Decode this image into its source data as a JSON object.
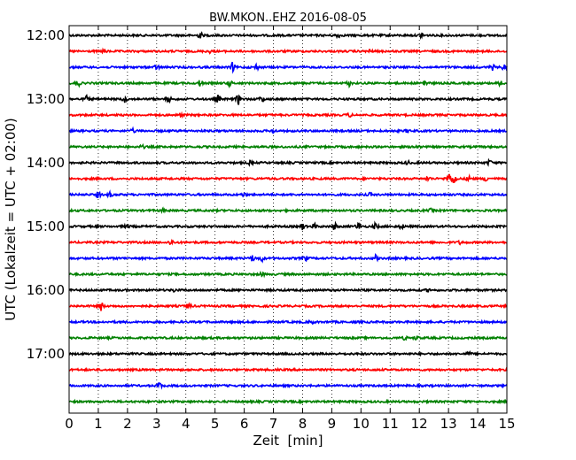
{
  "chart_data": {
    "type": "line",
    "title": "BW.MKON..EHZ 2016-08-05",
    "xlabel": "Zeit  [min]",
    "ylabel": "UTC (Lokalzeit = UTC + 02:00)",
    "xlim": [
      0,
      15
    ],
    "x_ticks": [
      0,
      1,
      2,
      3,
      4,
      5,
      6,
      7,
      8,
      9,
      10,
      11,
      12,
      13,
      14,
      15
    ],
    "x_tick_labels": [
      "0",
      "1",
      "2",
      "3",
      "4",
      "5",
      "6",
      "7",
      "8",
      "9",
      "10",
      "11",
      "12",
      "13",
      "14",
      "15"
    ],
    "y_ticks": [
      "12:00",
      "13:00",
      "14:00",
      "15:00",
      "16:00",
      "17:00"
    ],
    "vertical_grid": true,
    "trace_colors": [
      "#000000",
      "#ff0000",
      "#0000ff",
      "#008000"
    ],
    "traces": [
      {
        "start": "12:00",
        "color": "#000000",
        "events": [
          [
            4.5,
            1.0
          ],
          [
            9.2,
            0.8
          ],
          [
            12.1,
            0.8
          ]
        ]
      },
      {
        "start": "12:15",
        "color": "#ff0000",
        "events": [
          [
            1.2,
            0.6
          ],
          [
            4.8,
            0.5
          ],
          [
            10.3,
            0.5
          ]
        ]
      },
      {
        "start": "12:30",
        "color": "#0000ff",
        "events": [
          [
            3.0,
            0.8
          ],
          [
            5.6,
            1.6
          ],
          [
            6.4,
            1.0
          ],
          [
            14.5,
            0.9
          ],
          [
            14.9,
            0.9
          ]
        ]
      },
      {
        "start": "12:45",
        "color": "#008000",
        "events": [
          [
            0.3,
            1.2
          ],
          [
            4.5,
            1.2
          ],
          [
            5.5,
            1.0
          ],
          [
            9.6,
            0.9
          ],
          [
            12.2,
            1.4
          ],
          [
            14.8,
            1.0
          ]
        ]
      },
      {
        "start": "13:00",
        "color": "#000000",
        "events": [
          [
            0.6,
            1.0
          ],
          [
            1.9,
            1.0
          ],
          [
            3.4,
            1.0
          ],
          [
            5.1,
            1.2
          ],
          [
            5.8,
            1.8
          ],
          [
            6.6,
            1.0
          ]
        ]
      },
      {
        "start": "13:15",
        "color": "#ff0000",
        "events": [
          [
            3.8,
            0.6
          ],
          [
            9.6,
            0.6
          ]
        ]
      },
      {
        "start": "13:30",
        "color": "#0000ff",
        "events": [
          [
            2.2,
            0.6
          ],
          [
            7.0,
            0.5
          ],
          [
            11.6,
            0.5
          ]
        ]
      },
      {
        "start": "13:45",
        "color": "#008000",
        "events": [
          [
            2.5,
            0.5
          ],
          [
            11.9,
            0.8
          ]
        ]
      },
      {
        "start": "14:00",
        "color": "#000000",
        "events": [
          [
            6.2,
            0.6
          ],
          [
            11.6,
            0.6
          ],
          [
            14.4,
            0.9
          ]
        ]
      },
      {
        "start": "14:15",
        "color": "#ff0000",
        "events": [
          [
            12.3,
            0.8
          ],
          [
            13.0,
            2.4
          ],
          [
            13.2,
            2.0
          ],
          [
            13.7,
            1.0
          ],
          [
            14.3,
            1.0
          ]
        ]
      },
      {
        "start": "14:30",
        "color": "#0000ff",
        "events": [
          [
            1.0,
            1.0
          ],
          [
            1.4,
            0.7
          ],
          [
            6.0,
            0.6
          ],
          [
            10.3,
            0.5
          ]
        ]
      },
      {
        "start": "14:45",
        "color": "#008000",
        "events": [
          [
            3.2,
            0.5
          ],
          [
            12.4,
            0.5
          ]
        ]
      },
      {
        "start": "15:00",
        "color": "#000000",
        "events": [
          [
            2.0,
            0.6
          ],
          [
            8.0,
            1.2
          ],
          [
            8.4,
            0.9
          ],
          [
            9.1,
            1.2
          ],
          [
            9.9,
            1.4
          ],
          [
            10.5,
            1.0
          ],
          [
            11.4,
            0.8
          ]
        ]
      },
      {
        "start": "15:15",
        "color": "#ff0000",
        "events": [
          [
            3.5,
            0.9
          ],
          [
            13.4,
            0.5
          ]
        ]
      },
      {
        "start": "15:30",
        "color": "#0000ff",
        "events": [
          [
            6.3,
            1.2
          ],
          [
            6.6,
            1.0
          ],
          [
            8.1,
            0.8
          ],
          [
            10.5,
            1.0
          ]
        ]
      },
      {
        "start": "15:45",
        "color": "#008000",
        "events": [
          [
            6.6,
            0.6
          ]
        ]
      },
      {
        "start": "16:00",
        "color": "#000000",
        "events": [
          [
            3.6,
            0.5
          ],
          [
            12.3,
            0.5
          ]
        ]
      },
      {
        "start": "16:15",
        "color": "#ff0000",
        "events": [
          [
            1.1,
            1.6
          ],
          [
            4.1,
            1.0
          ]
        ]
      },
      {
        "start": "16:30",
        "color": "#0000ff",
        "events": [
          [
            8.3,
            0.5
          ]
        ]
      },
      {
        "start": "16:45",
        "color": "#008000",
        "events": [
          [
            11.9,
            0.6
          ],
          [
            11.5,
            0.5
          ]
        ]
      },
      {
        "start": "17:00",
        "color": "#000000",
        "events": [
          [
            13.7,
            0.5
          ]
        ]
      },
      {
        "start": "17:15",
        "color": "#ff0000",
        "events": []
      },
      {
        "start": "17:30",
        "color": "#0000ff",
        "events": [
          [
            3.1,
            1.0
          ]
        ]
      },
      {
        "start": "17:45",
        "color": "#008000",
        "events": []
      }
    ]
  }
}
